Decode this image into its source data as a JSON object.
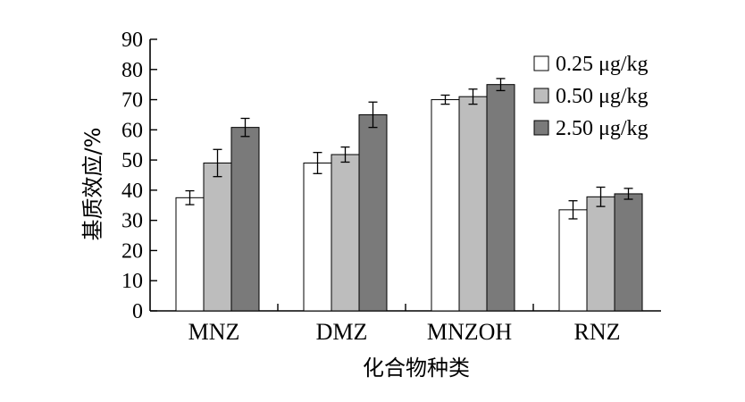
{
  "chart_data": {
    "type": "bar",
    "title": "",
    "xlabel": "化合物种类",
    "ylabel": "基质效应/%",
    "ylim": [
      0,
      90
    ],
    "yticks": [
      0,
      10,
      20,
      30,
      40,
      50,
      60,
      70,
      80,
      90
    ],
    "categories": [
      "MNZ",
      "DMZ",
      "MNZOH",
      "RNZ"
    ],
    "legend_position": "top-right",
    "grid": false,
    "series": [
      {
        "name": "0.25 μg/kg",
        "color": "#ffffff",
        "values": [
          37.5,
          49,
          70,
          33.5
        ],
        "errors": [
          2.3,
          3.5,
          1.5,
          3
        ]
      },
      {
        "name": "0.50 μg/kg",
        "color": "#bdbdbd",
        "values": [
          49,
          51.8,
          71,
          37.8
        ],
        "errors": [
          4.5,
          2.5,
          2.5,
          3.2
        ]
      },
      {
        "name": "2.50 μg/kg",
        "color": "#7a7a7a",
        "values": [
          60.8,
          65,
          75,
          38.8
        ],
        "errors": [
          3,
          4.2,
          2,
          1.8
        ]
      }
    ]
  }
}
